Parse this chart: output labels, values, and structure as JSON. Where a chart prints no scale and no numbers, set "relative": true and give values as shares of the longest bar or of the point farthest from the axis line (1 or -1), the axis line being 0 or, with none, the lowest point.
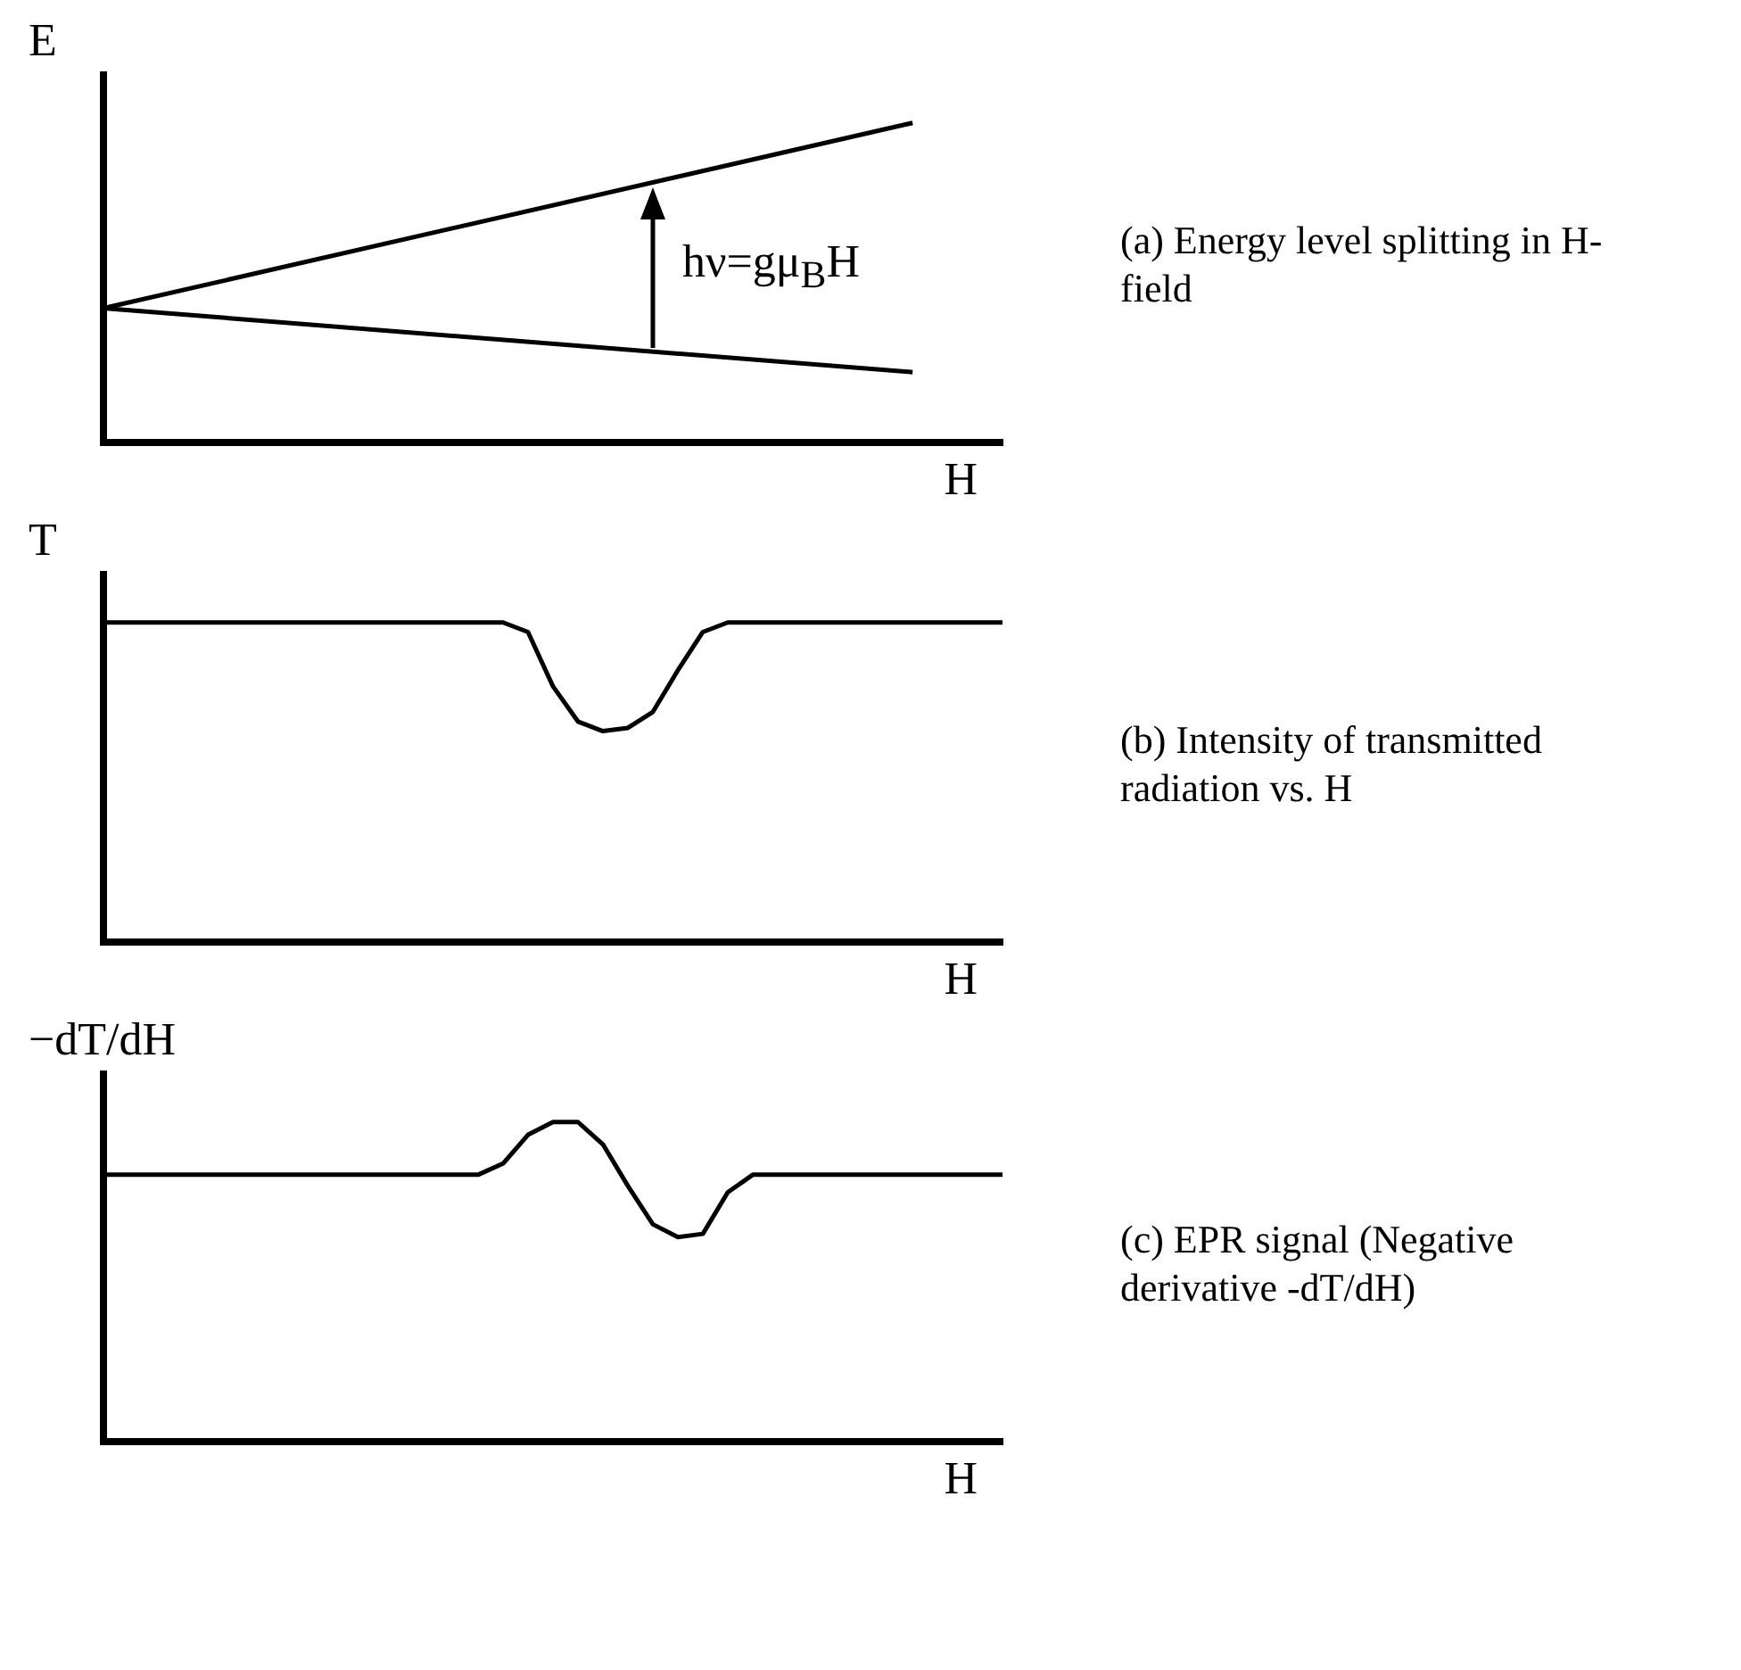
{
  "chart_data": [
    {
      "type": "line",
      "relative": true,
      "ylabel": "E",
      "xlabel": "H",
      "tick_labels": false,
      "grid": false,
      "legend": false,
      "marker": "none",
      "line_style": "solid",
      "categories": [
        null,
        null,
        null,
        null,
        null,
        null,
        null,
        null,
        null,
        null,
        null
      ],
      "series": [
        {
          "color": "#000000",
          "values": [
            0.42,
            null,
            null,
            null,
            null,
            null,
            null,
            null,
            null,
            1,
            null
          ]
        },
        {
          "color": "#000000",
          "values": [
            0.42,
            null,
            null,
            null,
            null,
            null,
            null,
            null,
            null,
            0.22,
            null
          ]
        }
      ],
      "annotations": [
        {
          "text": "hν=gμ$_{B}$H"
        },
        "(a) Energy level splitting in H-field"
      ]
    },
    {
      "type": "line",
      "relative": true,
      "ylabel": "T",
      "xlabel": "H",
      "tick_labels": false,
      "grid": false,
      "legend": false,
      "marker": "none",
      "line_style": "solid",
      "categories": [
        null,
        null,
        null,
        null,
        null,
        null,
        null,
        null,
        null,
        null,
        null,
        null,
        null,
        null,
        null,
        null,
        null,
        null,
        null,
        null,
        null,
        null,
        null,
        null,
        null,
        null,
        null,
        null,
        null,
        null,
        null,
        null,
        null,
        null,
        null,
        null,
        null
      ],
      "series": [
        {
          "color": "#000000",
          "values": [
            1,
            1,
            1,
            1,
            1,
            1,
            1,
            1,
            1,
            1,
            1,
            1,
            1,
            1,
            1,
            1,
            1,
            0.97,
            0.8,
            0.69,
            0.66,
            0.67,
            0.72,
            0.85,
            0.97,
            1,
            1,
            1,
            1,
            1,
            1,
            1,
            1,
            1,
            1,
            1,
            1
          ]
        }
      ],
      "annotations": [
        "(b) Intensity of transmitted radiation vs. H"
      ]
    },
    {
      "type": "line",
      "relative": true,
      "ylabel": "−dT/dH",
      "xlabel": "H",
      "tick_labels": false,
      "grid": false,
      "legend": false,
      "marker": "none",
      "line_style": "solid",
      "categories": [
        null,
        null,
        null,
        null,
        null,
        null,
        null,
        null,
        null,
        null,
        null,
        null,
        null,
        null,
        null,
        null,
        null,
        null,
        null,
        null,
        null,
        null,
        null,
        null,
        null,
        null,
        null,
        null,
        null,
        null,
        null,
        null,
        null,
        null,
        null,
        null,
        null
      ],
      "series": [
        {
          "color": "#000000",
          "values": [
            0.835,
            0.835,
            0.835,
            0.835,
            0.835,
            0.835,
            0.835,
            0.835,
            0.835,
            0.835,
            0.835,
            0.835,
            0.835,
            0.835,
            0.835,
            0.835,
            0.87,
            0.96,
            1,
            1,
            0.93,
            0.8,
            0.68,
            0.64,
            0.65,
            0.78,
            0.835,
            0.835,
            0.835,
            0.835,
            0.835,
            0.835,
            0.835,
            0.835,
            0.835,
            0.835,
            0.835
          ]
        }
      ],
      "annotations": [
        "(c) EPR signal (Negative derivative -dT/dH)"
      ]
    }
  ]
}
